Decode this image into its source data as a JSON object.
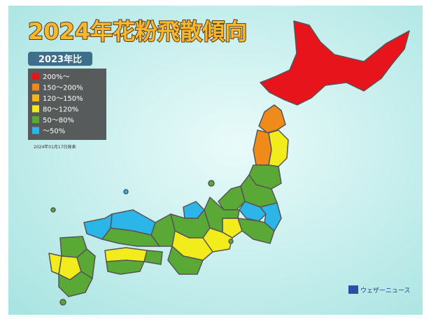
{
  "header": {
    "title": "2024年花粉飛散傾向",
    "subtitle": "2023年比",
    "date": "2024年01月17日発表"
  },
  "legend": {
    "items": [
      {
        "label": "200%～",
        "color": "#e8141b"
      },
      {
        "label": "150～200%",
        "color": "#f08a1a"
      },
      {
        "label": "120～150%",
        "color": "#f5b51c"
      },
      {
        "label": "80～120%",
        "color": "#f3ec1c"
      },
      {
        "label": "50～80%",
        "color": "#5aa937"
      },
      {
        "label": "～50%",
        "color": "#2cb5e8"
      }
    ]
  },
  "logo": {
    "text": "ウェザーニュース"
  }
}
